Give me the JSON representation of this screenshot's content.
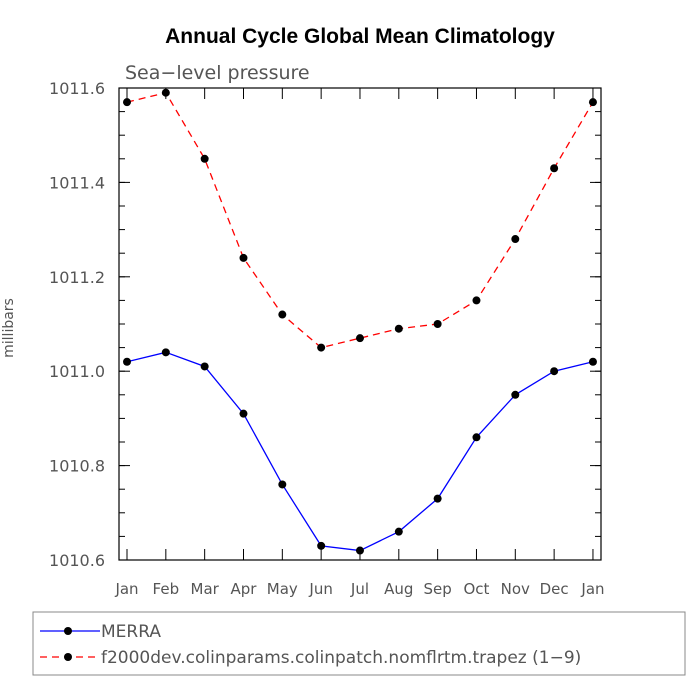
{
  "chart_data": {
    "type": "line",
    "title": "Annual Cycle Global Mean Climatology",
    "subtitle": "Sea−level pressure",
    "xlabel": "",
    "ylabel": "millibars",
    "categories": [
      "Jan",
      "Feb",
      "Mar",
      "Apr",
      "May",
      "Jun",
      "Jul",
      "Aug",
      "Sep",
      "Oct",
      "Nov",
      "Dec",
      "Jan"
    ],
    "yticks": [
      "1010.6",
      "1010.8",
      "1011.0",
      "1011.2",
      "1011.4",
      "1011.6"
    ],
    "ylim": [
      1010.6,
      1011.6
    ],
    "legend_position": "bottom",
    "series": [
      {
        "name": "MERRA",
        "color": "#0000ff",
        "line_style": "solid",
        "marker": "filled-circle",
        "values": [
          1011.02,
          1011.04,
          1011.01,
          1010.91,
          1010.76,
          1010.63,
          1010.62,
          1010.66,
          1010.73,
          1010.86,
          1010.95,
          1011.0,
          1011.02
        ]
      },
      {
        "name": "f2000dev.colinparams.colinpatch.nomflrtm.trapez (1−9)",
        "color": "#ff0000",
        "line_style": "dashed",
        "marker": "filled-circle",
        "values": [
          1011.57,
          1011.59,
          1011.45,
          1011.24,
          1011.12,
          1011.05,
          1011.07,
          1011.09,
          1011.1,
          1011.15,
          1011.28,
          1011.43,
          1011.57
        ]
      }
    ]
  }
}
